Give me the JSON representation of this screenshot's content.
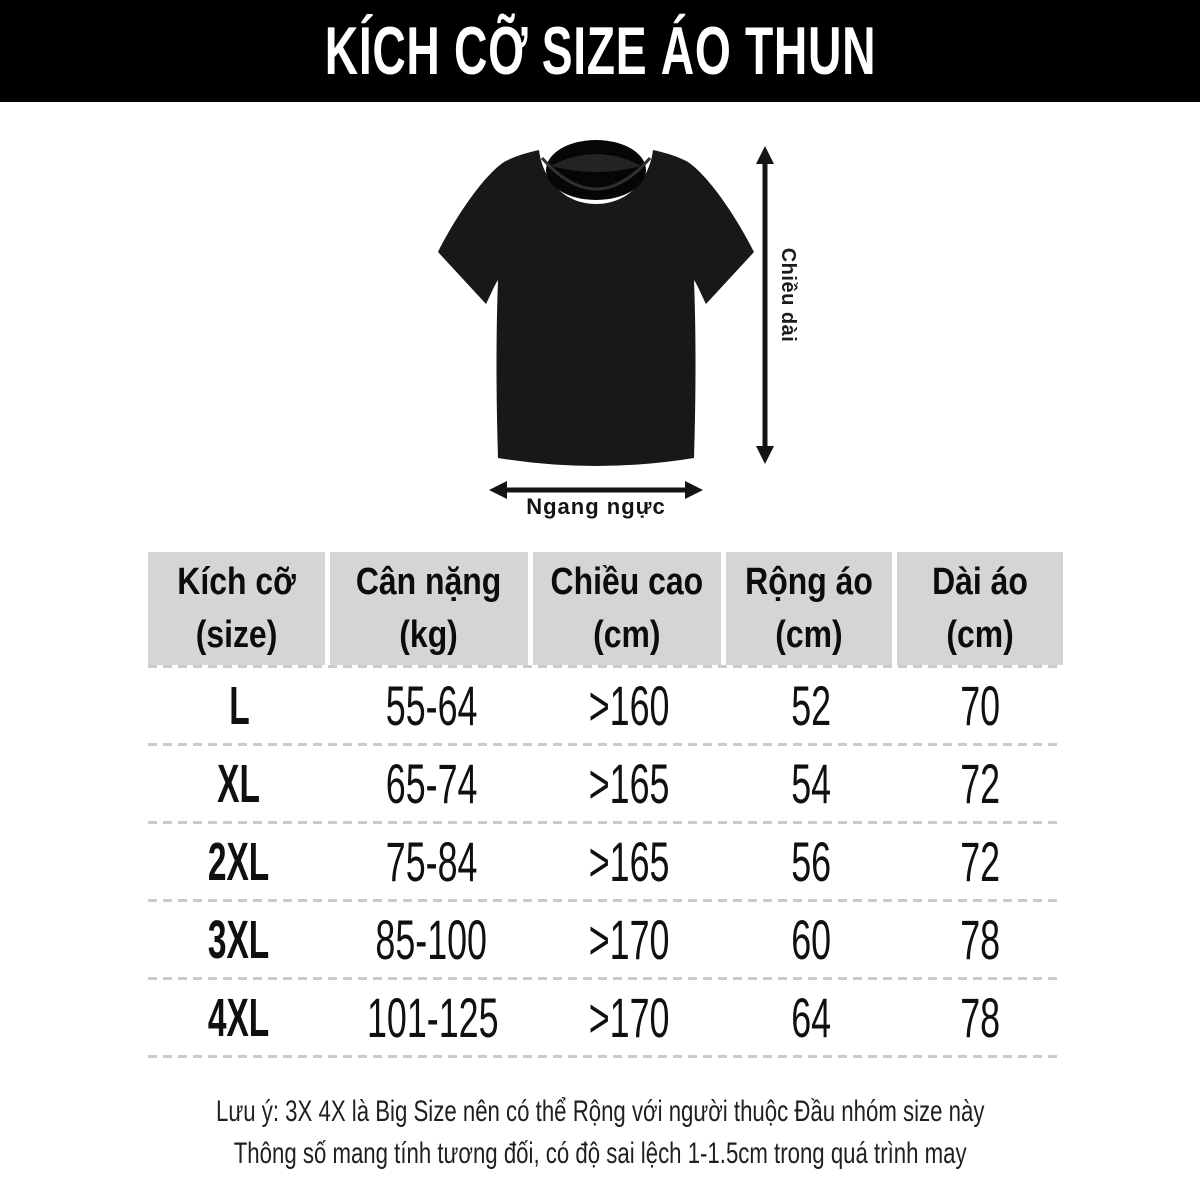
{
  "banner": {
    "title": "KÍCH CỠ SIZE ÁO THUN"
  },
  "figure": {
    "length_label": "Chiều dài",
    "chest_label": "Ngang ngực"
  },
  "size_table": {
    "columns": [
      {
        "label": "Kích cỡ",
        "unit": "(size)"
      },
      {
        "label": "Cân nặng",
        "unit": "(kg)"
      },
      {
        "label": "Chiều cao",
        "unit": "(cm)"
      },
      {
        "label": "Rộng áo",
        "unit": "(cm)"
      },
      {
        "label": "Dài áo",
        "unit": "(cm)"
      }
    ],
    "rows": [
      {
        "size": "L",
        "weight": "55-64",
        "height": ">160",
        "width_cm": "52",
        "length_cm": "70"
      },
      {
        "size": "XL",
        "weight": "65-74",
        "height": ">165",
        "width_cm": "54",
        "length_cm": "72"
      },
      {
        "size": "2XL",
        "weight": "75-84",
        "height": ">165",
        "width_cm": "56",
        "length_cm": "72"
      },
      {
        "size": "3XL",
        "weight": "85-100",
        "height": ">170",
        "width_cm": "60",
        "length_cm": "78"
      },
      {
        "size": "4XL",
        "weight": "101-125",
        "height": ">170",
        "width_cm": "64",
        "length_cm": "78"
      }
    ]
  },
  "notes": {
    "line1": "Lưu ý: 3X 4X là Big Size nên có thể Rộng với người thuộc Đầu nhóm size này",
    "line2": "Thông số mang tính tương đối, có độ sai lệch 1-1.5cm trong quá trình may"
  },
  "colors": {
    "banner_bg": "#000000",
    "banner_text": "#ffffff",
    "header_bg": "#d5d5d5",
    "dash_line": "#cbcbcb",
    "shirt": "#181818",
    "text": "#111111"
  }
}
